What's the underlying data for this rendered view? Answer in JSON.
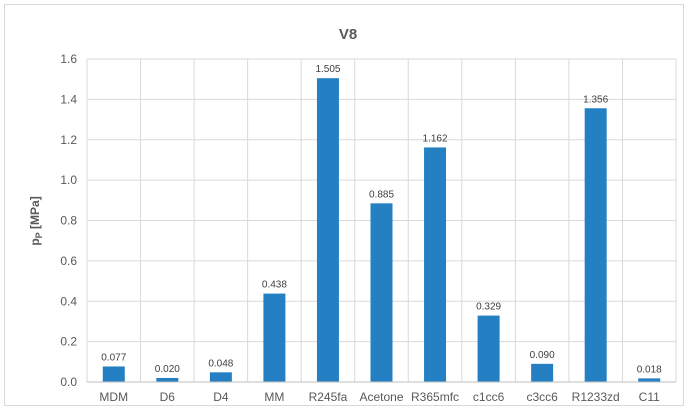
{
  "chart_data": {
    "type": "bar",
    "title": "V8",
    "ylabel": "p",
    "ylabel_sub": "P",
    "ylabel_unit": " [MPa]",
    "xlabel": "",
    "ylim": [
      0,
      1.6
    ],
    "yticks": [
      "0.0",
      "0.2",
      "0.4",
      "0.6",
      "0.8",
      "1.0",
      "1.2",
      "1.4",
      "1.6"
    ],
    "grid": "horizontal",
    "bar_color": "#2480C3",
    "categories": [
      "MDM",
      "D6",
      "D4",
      "MM",
      "R245fa",
      "Acetone",
      "R365mfc",
      "c1cc6",
      "c3cc6",
      "R1233zd",
      "C11"
    ],
    "values": [
      0.077,
      0.02,
      0.048,
      0.438,
      1.505,
      0.885,
      1.162,
      0.329,
      0.09,
      1.356,
      0.018
    ],
    "data_labels": [
      "0.077",
      "0.020",
      "0.048",
      "0.438",
      "1.505",
      "0.885",
      "1.162",
      "0.329",
      "0.090",
      "1.356",
      "0.018"
    ]
  }
}
